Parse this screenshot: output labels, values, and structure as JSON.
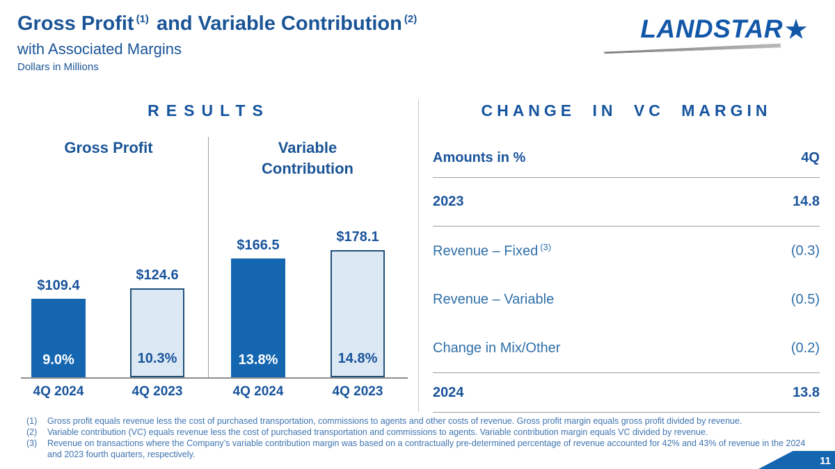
{
  "header": {
    "title_part1": "Gross Profit",
    "title_sup1": "(1)",
    "title_part2": "and Variable Contribution",
    "title_sup2": "(2)",
    "subtitle": "with Associated Margins",
    "units": "Dollars in Millions"
  },
  "logo": {
    "text": "LANDSTAR",
    "star": "★"
  },
  "sections": {
    "left_heading": "RESULTS",
    "right_heading": "CHANGE IN VC MARGIN"
  },
  "chart_data": {
    "type": "bar",
    "title": "RESULTS",
    "unit": "Dollars in Millions",
    "ylim": [
      0,
      190
    ],
    "grid": false,
    "groups": [
      {
        "label": "Gross Profit",
        "bars": [
          {
            "category": "4Q 2024",
            "value": 109.4,
            "value_label": "$109.4",
            "margin": "9.0%",
            "variant": "solid"
          },
          {
            "category": "4Q 2023",
            "value": 124.6,
            "value_label": "$124.6",
            "margin": "10.3%",
            "variant": "outline"
          }
        ]
      },
      {
        "label": "Variable Contribution",
        "bars": [
          {
            "category": "4Q 2024",
            "value": 166.5,
            "value_label": "$166.5",
            "margin": "13.8%",
            "variant": "solid"
          },
          {
            "category": "4Q 2023",
            "value": 178.1,
            "value_label": "$178.1",
            "margin": "14.8%",
            "variant": "outline"
          }
        ]
      }
    ]
  },
  "vc_table": {
    "heading": "CHANGE IN VC MARGIN",
    "col_label": "Amounts in %",
    "col_value": "4Q",
    "rows": [
      {
        "label": "2023",
        "value": "14.8"
      },
      {
        "label": "Revenue – Fixed",
        "sup": "(3)",
        "value": "(0.3)"
      },
      {
        "label": "Revenue – Variable",
        "value": "(0.5)"
      },
      {
        "label": "Change in Mix/Other",
        "value": "(0.2)"
      },
      {
        "label": "2024",
        "value": "13.8"
      }
    ]
  },
  "footnotes": [
    {
      "num": "(1)",
      "text": "Gross profit equals revenue less the cost of purchased transportation, commissions to agents and other costs of revenue.  Gross profit margin equals gross profit divided by revenue."
    },
    {
      "num": "(2)",
      "text": "Variable contribution (VC) equals revenue less the cost of purchased transportation and commissions to agents.  Variable contribution margin equals VC divided by revenue."
    },
    {
      "num": "(3)",
      "text": "Revenue on transactions where the Company’s variable contribution margin was based on a contractually pre-determined percentage of revenue accounted for 42% and 43% of revenue in the 2024 and 2023 fourth quarters, respectively."
    }
  ],
  "page_number": "11",
  "colors": {
    "heading_blue": "#1A5496",
    "bar_solid": "#1566B0",
    "bar_light_fill": "#DCE9F5",
    "bar_light_border": "#1F4E79",
    "table_text_blue": "#2F6FA8",
    "footnote_blue": "#3E74B0",
    "ribbon_blue": "#1566B0"
  }
}
